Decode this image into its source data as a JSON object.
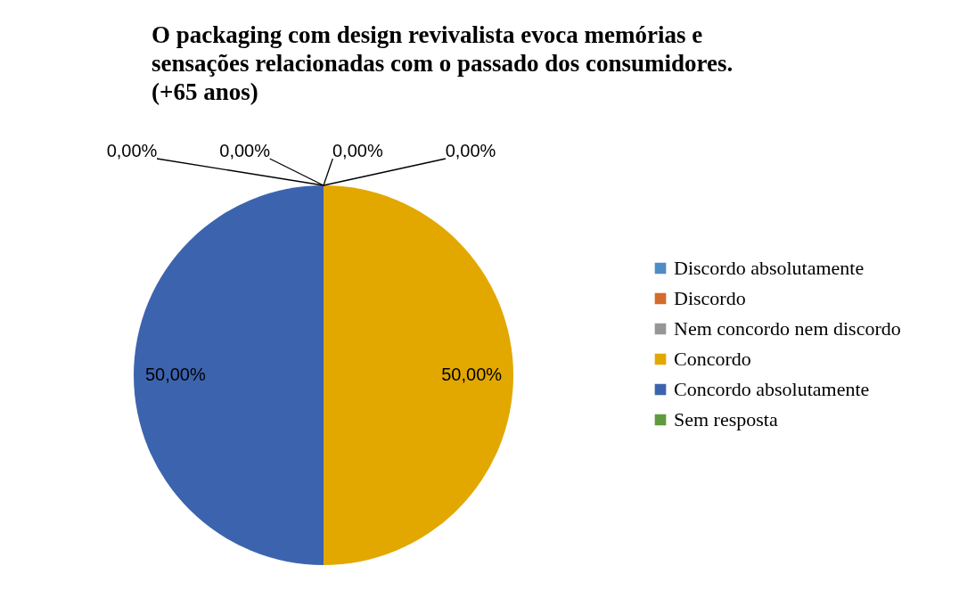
{
  "chart_data": {
    "type": "pie",
    "title": "O packaging com design revivalista evoca memórias e sensações relacionadas com o passado dos consumidores. (+65 anos)",
    "categories": [
      "Discordo absolutamente",
      "Discordo",
      "Nem concordo nem discordo",
      "Concordo",
      "Concordo absolutamente",
      "Sem resposta"
    ],
    "values": [
      0,
      0,
      0,
      50,
      50,
      0
    ],
    "value_labels": [
      "0,00%",
      "0,00%",
      "0,00%",
      "50,00%",
      "50,00%",
      "0,00%"
    ],
    "colors": [
      "#4f8cc6",
      "#d56b2a",
      "#969696",
      "#e2a800",
      "#3c64ae",
      "#5f9a3e"
    ],
    "legend": "right"
  }
}
